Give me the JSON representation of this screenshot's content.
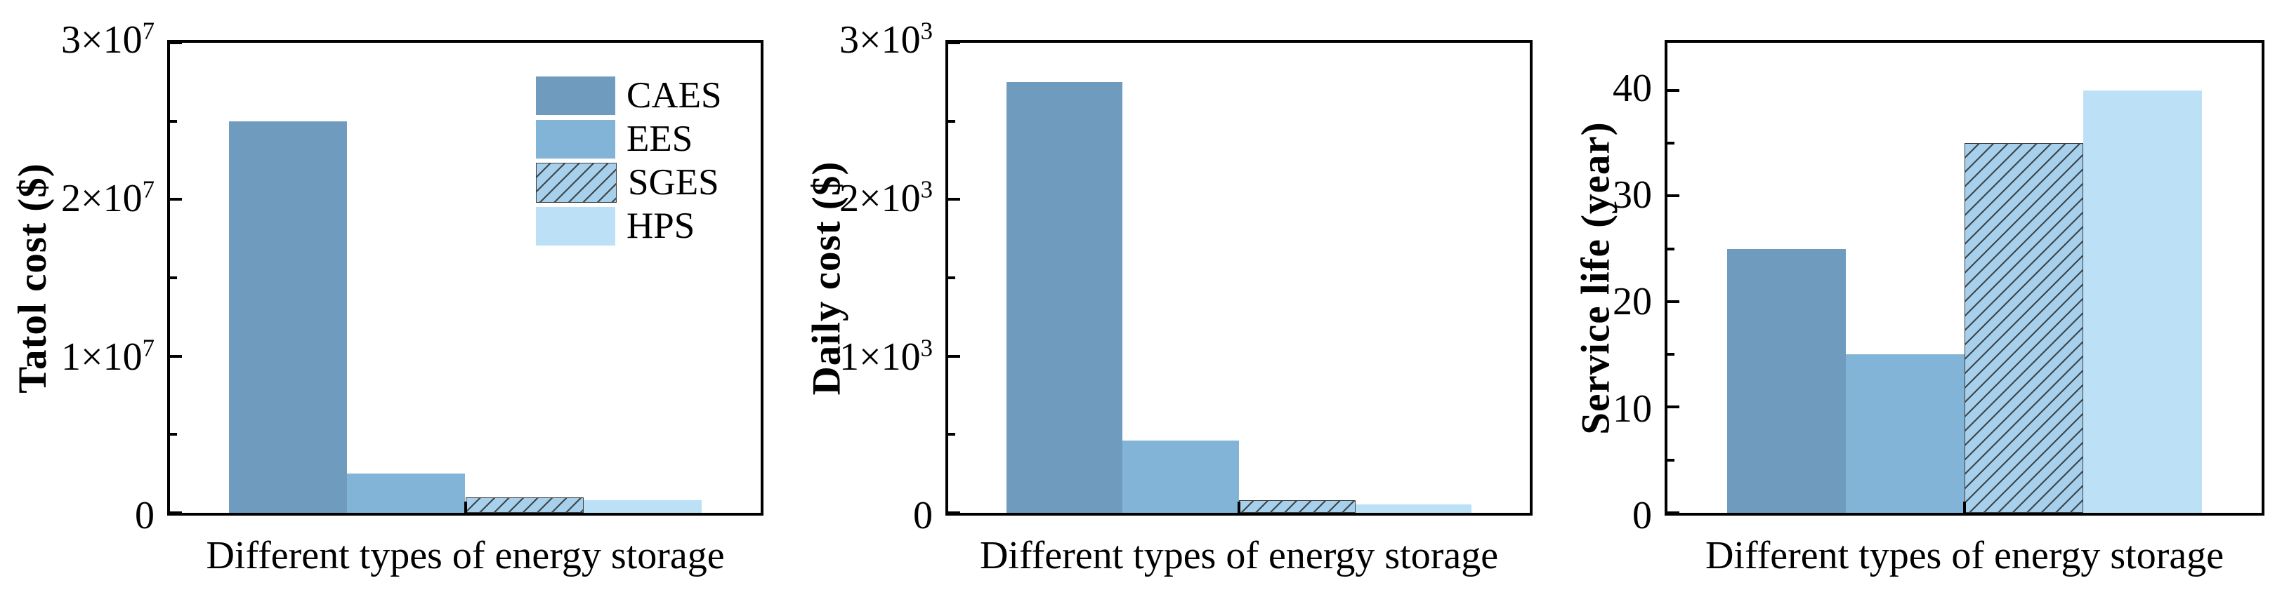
{
  "palette": {
    "caes": "#6f9cbe",
    "ees": "#81b4d6",
    "sges": "#a6d0eb",
    "hps": "#bce1f6",
    "hatch_line": "#3c3c3c",
    "axis": "#000000",
    "background": "#ffffff"
  },
  "legend": {
    "position": "upper right of first chart",
    "items": [
      {
        "label": "CAES",
        "color": "caes",
        "pattern": "solid"
      },
      {
        "label": "EES",
        "color": "ees",
        "pattern": "solid"
      },
      {
        "label": "SGES",
        "color": "sges",
        "pattern": "diagonal-hatch"
      },
      {
        "label": "HPS",
        "color": "hps",
        "pattern": "solid"
      }
    ]
  },
  "chart_data": [
    {
      "type": "bar",
      "title": "",
      "xlabel": "Different types of energy storage",
      "ylabel": "Tatol cost ($)",
      "categories": [
        "CAES",
        "EES",
        "SGES",
        "HPS"
      ],
      "values": [
        25000000,
        2500000,
        1000000,
        800000
      ],
      "colors": [
        "caes",
        "ees",
        "sges",
        "hps"
      ],
      "patterns": [
        "solid",
        "solid",
        "diagonal-hatch",
        "solid"
      ],
      "ylim": [
        0,
        30000000
      ],
      "yticks": [
        {
          "v": 0,
          "m": "0",
          "e": ""
        },
        {
          "v": 10000000,
          "m": "1×10",
          "e": "7"
        },
        {
          "v": 20000000,
          "m": "2×10",
          "e": "7"
        },
        {
          "v": 30000000,
          "m": "3×10",
          "e": "7"
        }
      ],
      "yticks_minor": [
        5000000,
        15000000,
        25000000
      ],
      "grid": false,
      "legend_visible": true
    },
    {
      "type": "bar",
      "title": "",
      "xlabel": "Different types of energy storage",
      "ylabel": "Daily cost ($)",
      "categories": [
        "CAES",
        "EES",
        "SGES",
        "HPS"
      ],
      "values": [
        2750,
        460,
        80,
        55
      ],
      "colors": [
        "caes",
        "ees",
        "sges",
        "hps"
      ],
      "patterns": [
        "solid",
        "solid",
        "diagonal-hatch",
        "solid"
      ],
      "ylim": [
        0,
        3000
      ],
      "yticks": [
        {
          "v": 0,
          "m": "0",
          "e": ""
        },
        {
          "v": 1000,
          "m": "1×10",
          "e": "3"
        },
        {
          "v": 2000,
          "m": "2×10",
          "e": "3"
        },
        {
          "v": 3000,
          "m": "3×10",
          "e": "3"
        }
      ],
      "yticks_minor": [
        500,
        1500,
        2500
      ],
      "grid": false,
      "legend_visible": false
    },
    {
      "type": "bar",
      "title": "",
      "xlabel": "Different types of energy storage",
      "ylabel": "Service life (year)",
      "categories": [
        "CAES",
        "EES",
        "SGES",
        "HPS"
      ],
      "values": [
        25,
        15,
        35,
        40
      ],
      "colors": [
        "caes",
        "ees",
        "sges",
        "hps"
      ],
      "patterns": [
        "solid",
        "solid",
        "diagonal-hatch",
        "solid"
      ],
      "ylim": [
        0,
        44.5
      ],
      "yticks": [
        {
          "v": 0,
          "m": "0",
          "e": ""
        },
        {
          "v": 10,
          "m": "10",
          "e": ""
        },
        {
          "v": 20,
          "m": "20",
          "e": ""
        },
        {
          "v": 30,
          "m": "30",
          "e": ""
        },
        {
          "v": 40,
          "m": "40",
          "e": ""
        }
      ],
      "yticks_minor": [
        5,
        15,
        25,
        35
      ],
      "grid": false,
      "legend_visible": false
    }
  ]
}
